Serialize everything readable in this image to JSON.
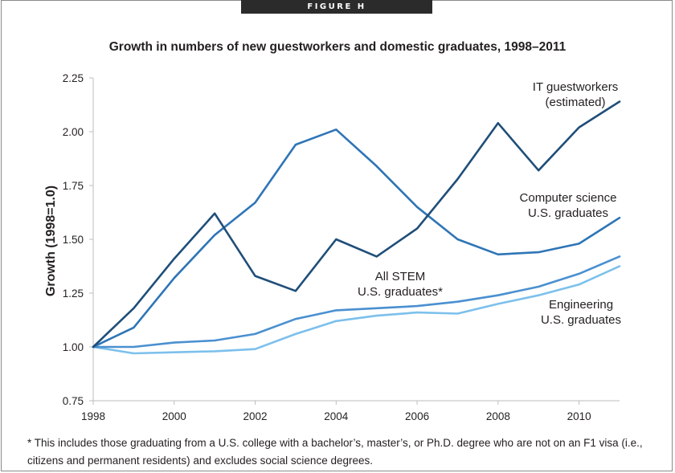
{
  "banner": "FIGURE H",
  "chart_data": {
    "type": "line",
    "title": "Growth in numbers of new guestworkers and domestic graduates, 1998–2011",
    "ylabel": "Growth (1998=1.0)",
    "xlabel": "",
    "xlim": [
      1998,
      2011
    ],
    "ylim": [
      0.75,
      2.25
    ],
    "x_ticks": [
      1998,
      2000,
      2002,
      2004,
      2006,
      2008,
      2010
    ],
    "y_ticks": [
      "0.75",
      "1.00",
      "1.25",
      "1.50",
      "1.75",
      "2.00",
      "2.25"
    ],
    "grid": false,
    "x": [
      1998,
      1999,
      2000,
      2001,
      2002,
      2003,
      2004,
      2005,
      2006,
      2007,
      2008,
      2009,
      2010,
      2011
    ],
    "series": [
      {
        "name": "IT guestworkers (estimated)",
        "color": "#1f4e79",
        "values": [
          1.0,
          1.18,
          1.41,
          1.62,
          1.33,
          1.26,
          1.5,
          1.42,
          1.55,
          1.78,
          2.04,
          1.82,
          2.02,
          2.14
        ]
      },
      {
        "name": "Computer science U.S. graduates",
        "color": "#2e75b6",
        "values": [
          1.0,
          1.09,
          1.32,
          1.52,
          1.67,
          1.94,
          2.01,
          1.84,
          1.65,
          1.5,
          1.43,
          1.44,
          1.48,
          1.6
        ]
      },
      {
        "name": "All STEM U.S. graduates*",
        "color": "#4a90d0",
        "values": [
          1.0,
          1.0,
          1.02,
          1.03,
          1.06,
          1.13,
          1.17,
          1.18,
          1.19,
          1.21,
          1.24,
          1.28,
          1.34,
          1.42
        ]
      },
      {
        "name": "Engineering U.S. graduates",
        "color": "#7cc0ec",
        "values": [
          1.0,
          0.97,
          0.975,
          0.98,
          0.99,
          1.06,
          1.12,
          1.145,
          1.16,
          1.155,
          1.2,
          1.24,
          1.29,
          1.375
        ]
      }
    ],
    "annotations": [
      {
        "lines": [
          "IT guestworkers",
          "(estimated)"
        ],
        "series": 0
      },
      {
        "lines": [
          "Computer science",
          "U.S. graduates"
        ],
        "series": 1
      },
      {
        "lines": [
          "All STEM",
          "U.S. graduates*"
        ],
        "series": 2
      },
      {
        "lines": [
          "Engineering",
          "U.S. graduates"
        ],
        "series": 3
      }
    ]
  },
  "footnote": "* This includes those graduating from a U.S. college with a bachelor’s, master’s, or Ph.D. degree who are not on an F1 visa (i.e., citizens and permanent residents) and excludes social science degrees."
}
